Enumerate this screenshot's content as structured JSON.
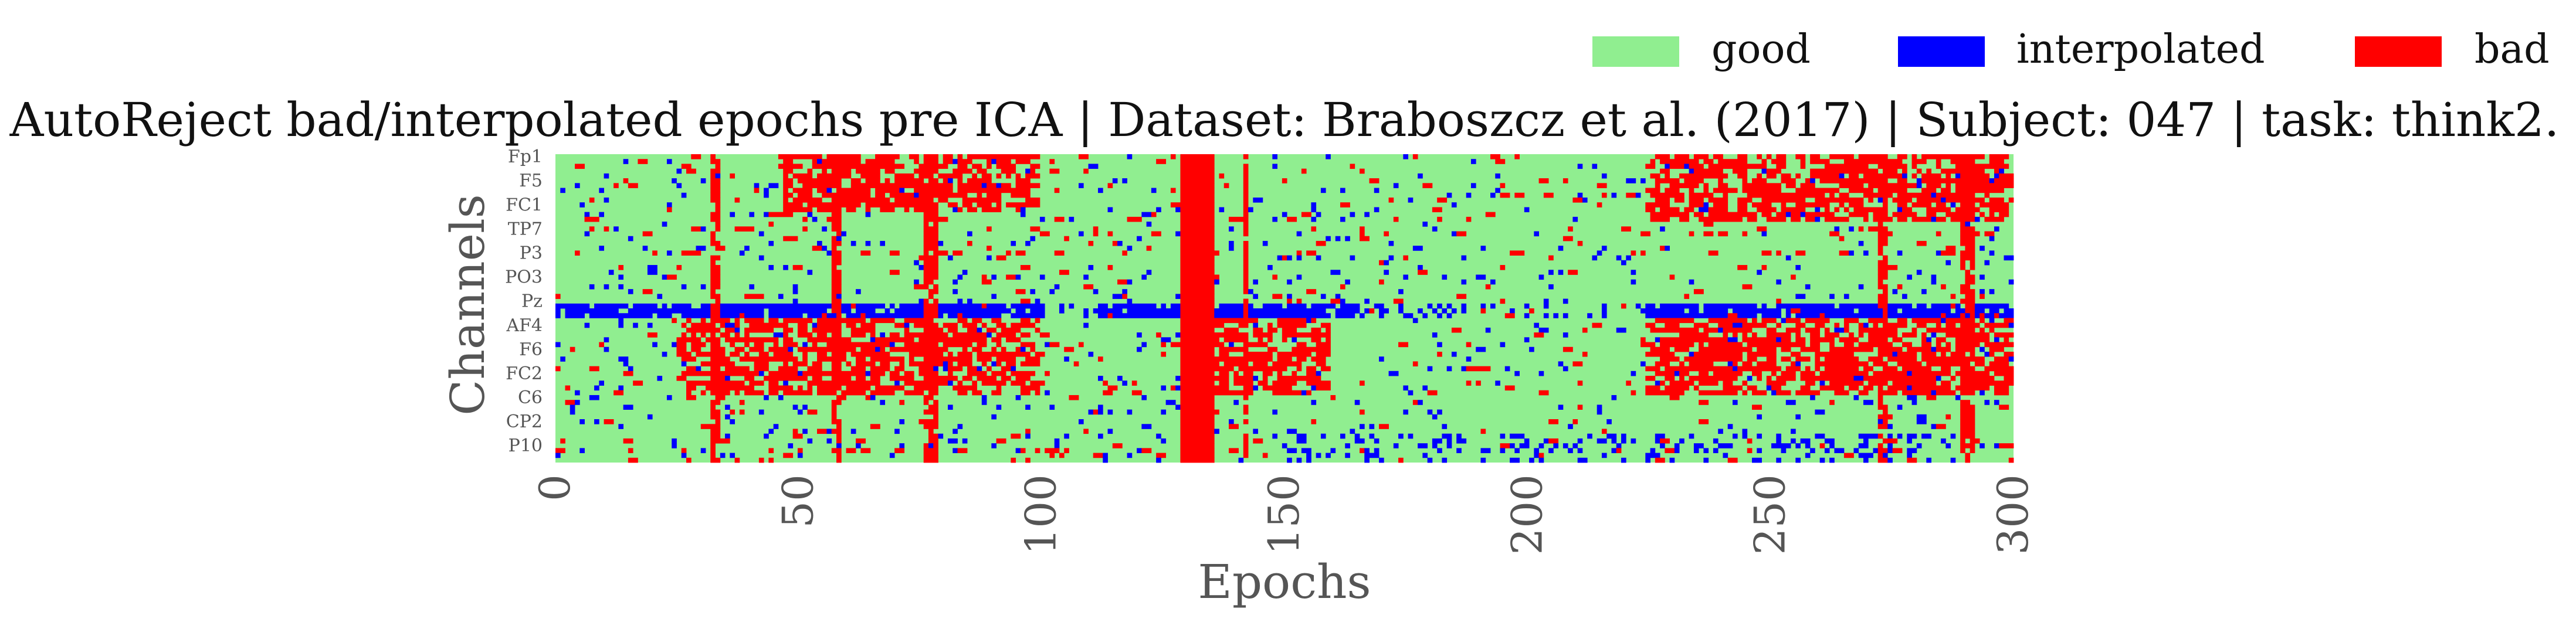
{
  "chart_data": {
    "type": "heatmap",
    "title": "AutoReject bad/interpolated epochs pre ICA | Dataset: Braboszcz et al. (2017) | Subject: 047 | task: think2.",
    "xlabel": "Epochs",
    "ylabel": "Channels",
    "x_ticks": [
      "0",
      "50",
      "100",
      "150",
      "200",
      "250",
      "300"
    ],
    "x_range": [
      0,
      300
    ],
    "y_tick_labels": [
      "Fp1",
      "F5",
      "FC1",
      "TP7",
      "P3",
      "PO3",
      "Pz",
      "AF4",
      "F6",
      "FC2",
      "C6",
      "CP2",
      "P10"
    ],
    "n_channels": 64,
    "n_epochs": 301,
    "grid": false,
    "legend": {
      "placement": "top-right",
      "entries": [
        {
          "label": "good",
          "color": "#90ee90"
        },
        {
          "label": "interpolated",
          "color": "#0000ff"
        },
        {
          "label": "bad",
          "color": "#ff0000"
        }
      ]
    },
    "fully_bad_epochs": [
      129,
      130,
      131,
      132,
      133,
      134,
      135
    ],
    "partially_bad_columns": [
      32,
      33,
      57,
      58,
      76,
      77,
      78,
      142,
      273,
      274,
      290,
      291,
      292
    ],
    "interpolated_band_channels": [
      31,
      32,
      33
    ],
    "heavy_segments": [
      {
        "epochs": [
          47,
          100
        ],
        "channels": [
          0,
          12
        ],
        "level": 0.55
      },
      {
        "epochs": [
          26,
          100
        ],
        "channels": [
          33,
          50
        ],
        "level": 0.5
      },
      {
        "epochs": [
          226,
          301
        ],
        "channels": [
          0,
          14
        ],
        "level": 0.55
      },
      {
        "epochs": [
          226,
          301
        ],
        "channels": [
          33,
          50
        ],
        "level": 0.55
      },
      {
        "epochs": [
          136,
          160
        ],
        "channels": [
          33,
          50
        ],
        "level": 0.45
      }
    ],
    "colors": {
      "good": "#90ee90",
      "interpolated": "#0000ff",
      "bad": "#ff0000"
    }
  }
}
